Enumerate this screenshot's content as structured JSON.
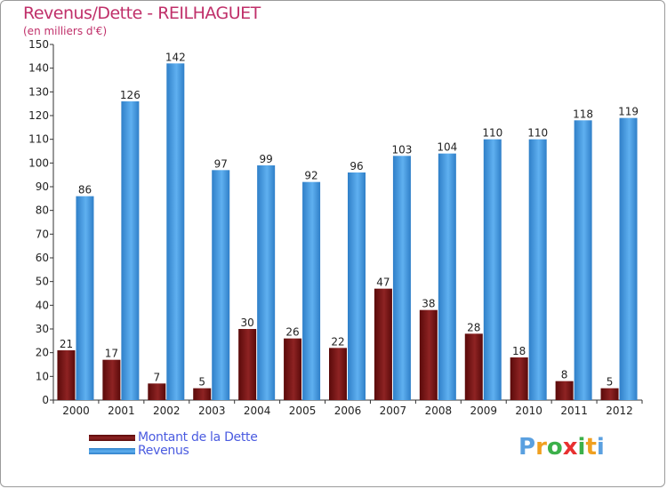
{
  "chart_data": {
    "type": "bar",
    "title": "Revenus/Dette - REILHAGUET",
    "subtitle": "(en milliers d'€)",
    "categories": [
      "2000",
      "2001",
      "2002",
      "2003",
      "2004",
      "2005",
      "2006",
      "2007",
      "2008",
      "2009",
      "2010",
      "2011",
      "2012"
    ],
    "series": [
      {
        "name": "Montant de la Dette",
        "color": "#7a1212",
        "values": [
          21,
          17,
          7,
          5,
          30,
          26,
          22,
          47,
          38,
          28,
          18,
          8,
          5
        ]
      },
      {
        "name": "Revenus",
        "color": "#3f97df",
        "values": [
          86,
          126,
          142,
          97,
          99,
          92,
          96,
          103,
          104,
          110,
          110,
          118,
          119
        ]
      }
    ],
    "ylim": [
      0,
      150
    ],
    "ytick_step": 10,
    "xlabel": "",
    "ylabel": "",
    "grid": false,
    "legend": "bottom-left"
  },
  "brand": {
    "logo_letters": [
      "P",
      "r",
      "o",
      "x",
      "i",
      "t",
      "i"
    ],
    "logo_colors": [
      "#5aa0e0",
      "#f0a020",
      "#3cb04a",
      "#e83030",
      "#3cb04a",
      "#f0a020",
      "#5aa0e0"
    ]
  }
}
